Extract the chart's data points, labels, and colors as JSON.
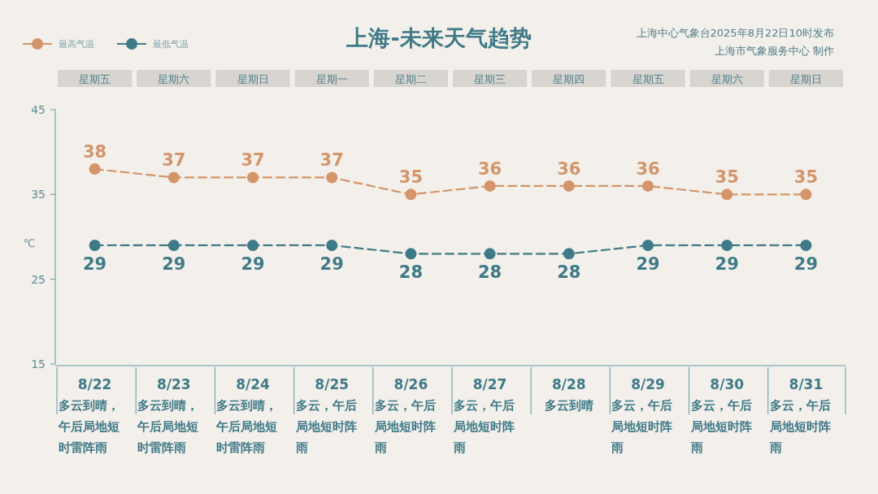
{
  "chart_data": {
    "type": "line",
    "title": "上海-未来天气趋势",
    "ylabel": "℃",
    "categories": [
      "8/22",
      "8/23",
      "8/24",
      "8/25",
      "8/26",
      "8/27",
      "8/28",
      "8/29",
      "8/30",
      "8/31"
    ],
    "series": [
      {
        "name": "最高气温",
        "color": "#d4956a",
        "values": [
          38,
          37,
          37,
          37,
          35,
          36,
          36,
          36,
          35,
          35
        ]
      },
      {
        "name": "最低气温",
        "color": "#3f7a88",
        "values": [
          29,
          29,
          29,
          29,
          28,
          28,
          28,
          29,
          29,
          29
        ]
      }
    ],
    "ylim": [
      15,
      45
    ],
    "yticks": [
      15,
      25,
      35,
      45
    ],
    "legend": "top left",
    "marker": "circle",
    "line_style": "dashed",
    "data_labels": true,
    "annotations": [
      "上海中心气象台2025年8月22日10时发布",
      "上海市气象服务中心 制作",
      "星期五",
      "星期六",
      "星期日",
      "星期一",
      "星期二",
      "星期三",
      "星期四",
      "星期五",
      "星期六",
      "星期日",
      "多云到晴，午后局地短时雷阵雨",
      "多云到晴，午后局地短时雷阵雨",
      "多云到晴，午后局地短时雷阵雨",
      "多云，午后局地短时阵雨",
      "多云，午后局地短时阵雨",
      "多云，午后局地短时阵雨",
      "多云到晴",
      "多云，午后局地短时阵雨",
      "多云，午后局地短时阵雨",
      "多云，午后局地短时阵雨"
    ]
  }
}
